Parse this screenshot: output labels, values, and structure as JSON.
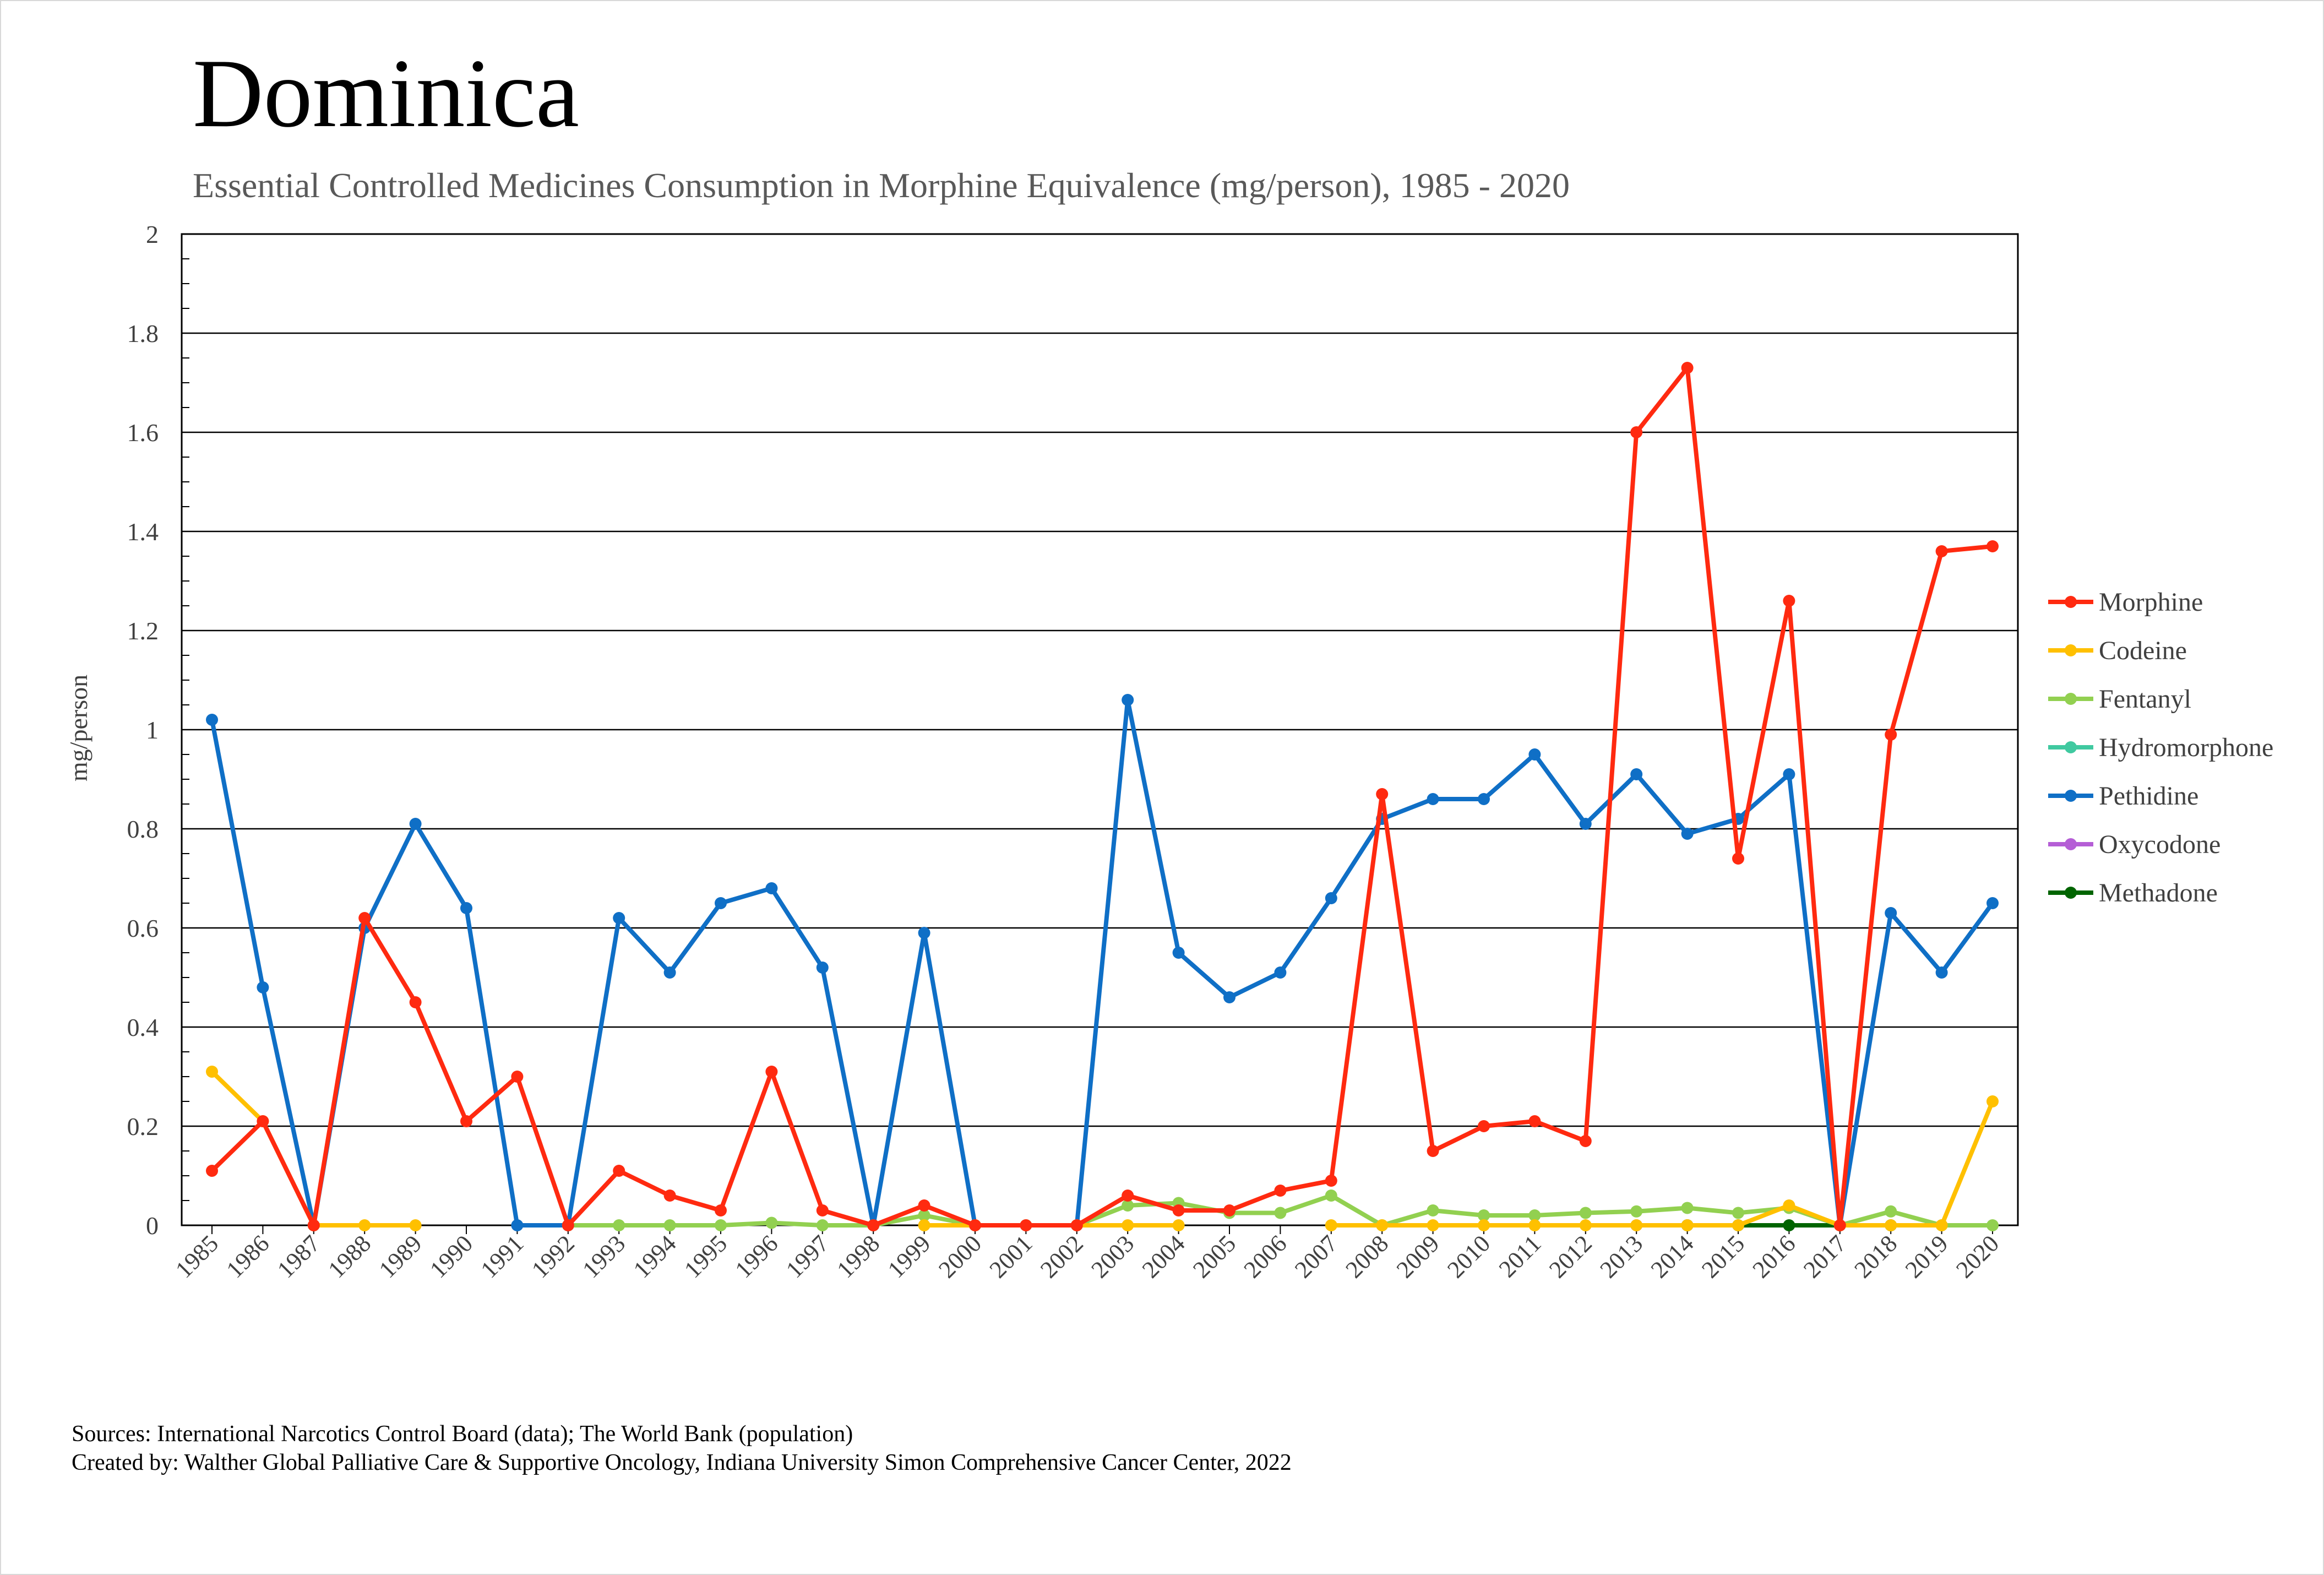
{
  "chart_data": {
    "type": "line",
    "title": "Dominica",
    "subtitle": "Essential Controlled Medicines Consumption in Morphine Equivalence (mg/person), 1985 - 2020",
    "xlabel": "",
    "ylabel": "mg/person",
    "ylim": [
      0,
      2
    ],
    "yticks": [
      0,
      0.2,
      0.4,
      0.6,
      0.8,
      1,
      1.2,
      1.4,
      1.6,
      1.8,
      2
    ],
    "ytick_labels": [
      "0",
      "0.2",
      "0.4",
      "0.6",
      "0.8",
      "1",
      "1.2",
      "1.4",
      "1.6",
      "1.8",
      "2"
    ],
    "grid": true,
    "legend_position": "right",
    "categories": [
      "1985",
      "1986",
      "1987",
      "1988",
      "1989",
      "1990",
      "1991",
      "1992",
      "1993",
      "1994",
      "1995",
      "1996",
      "1997",
      "1998",
      "1999",
      "2000",
      "2001",
      "2002",
      "2003",
      "2004",
      "2005",
      "2006",
      "2007",
      "2008",
      "2009",
      "2010",
      "2011",
      "2012",
      "2013",
      "2014",
      "2015",
      "2016",
      "2017",
      "2018",
      "2019",
      "2020"
    ],
    "series": [
      {
        "name": "Morphine",
        "color": "#ff2a10",
        "values": [
          0.11,
          0.21,
          0,
          0.62,
          0.45,
          0.21,
          0.3,
          0,
          0.11,
          0.06,
          0.03,
          0.31,
          0.03,
          0,
          0.04,
          0,
          0,
          0,
          0.06,
          0.03,
          0.03,
          0.07,
          0.09,
          0.87,
          0.15,
          0.2,
          0.21,
          0.17,
          1.6,
          1.73,
          0.74,
          1.26,
          0,
          0.99,
          1.36,
          1.37
        ]
      },
      {
        "name": "Codeine",
        "color": "#ffc000",
        "values": [
          0.31,
          0.21,
          0,
          0,
          0,
          null,
          null,
          null,
          null,
          null,
          null,
          null,
          null,
          null,
          0,
          0,
          0,
          0,
          0,
          0,
          null,
          null,
          0,
          0,
          0,
          0,
          0,
          0,
          0,
          0,
          0,
          0.04,
          0,
          0,
          0,
          0.25
        ]
      },
      {
        "name": "Fentanyl",
        "color": "#92d050",
        "values": [
          null,
          null,
          null,
          null,
          null,
          null,
          null,
          0,
          0,
          0,
          0,
          0.005,
          0,
          0,
          0.02,
          0,
          null,
          0,
          0.04,
          0.045,
          0.025,
          0.025,
          0.06,
          0,
          0.03,
          0.02,
          0.02,
          0.025,
          0.028,
          0.035,
          0.025,
          0.035,
          0,
          0.028,
          0,
          0
        ]
      },
      {
        "name": "Hydromorphone",
        "color": "#40c9a0",
        "values": [
          null,
          null,
          null,
          null,
          null,
          null,
          null,
          null,
          null,
          null,
          null,
          null,
          null,
          null,
          null,
          null,
          null,
          null,
          null,
          null,
          null,
          null,
          null,
          null,
          null,
          null,
          null,
          null,
          null,
          null,
          null,
          null,
          null,
          null,
          null,
          null
        ]
      },
      {
        "name": "Pethidine",
        "color": "#0f6fc6",
        "values": [
          1.02,
          0.48,
          0,
          0.6,
          0.81,
          0.64,
          0,
          0,
          0.62,
          0.51,
          0.65,
          0.68,
          0.52,
          0,
          0.59,
          0,
          0,
          0,
          1.06,
          0.55,
          0.46,
          0.51,
          0.66,
          0.82,
          0.86,
          0.86,
          0.95,
          0.81,
          0.91,
          0.79,
          0.82,
          0.91,
          0,
          0.63,
          0.51,
          0.65
        ]
      },
      {
        "name": "Oxycodone",
        "color": "#b55ed6",
        "values": [
          null,
          null,
          null,
          null,
          null,
          null,
          null,
          null,
          null,
          null,
          null,
          null,
          null,
          null,
          null,
          null,
          null,
          null,
          null,
          null,
          null,
          null,
          null,
          null,
          null,
          null,
          null,
          null,
          0,
          null,
          null,
          null,
          null,
          null,
          null,
          null
        ]
      },
      {
        "name": "Methadone",
        "color": "#006400",
        "values": [
          null,
          null,
          null,
          null,
          null,
          null,
          null,
          null,
          null,
          null,
          null,
          null,
          null,
          null,
          null,
          null,
          null,
          null,
          null,
          null,
          null,
          null,
          null,
          null,
          null,
          null,
          null,
          null,
          null,
          0,
          0,
          0,
          0,
          0,
          null,
          null
        ]
      }
    ]
  },
  "footer": {
    "sources": "Sources: International Narcotics Control Board (data); The World Bank (population)",
    "created_by": "Created by: Walther Global Palliative Care & Supportive Oncology, Indiana University Simon Comprehensive Cancer Center, 2022"
  }
}
